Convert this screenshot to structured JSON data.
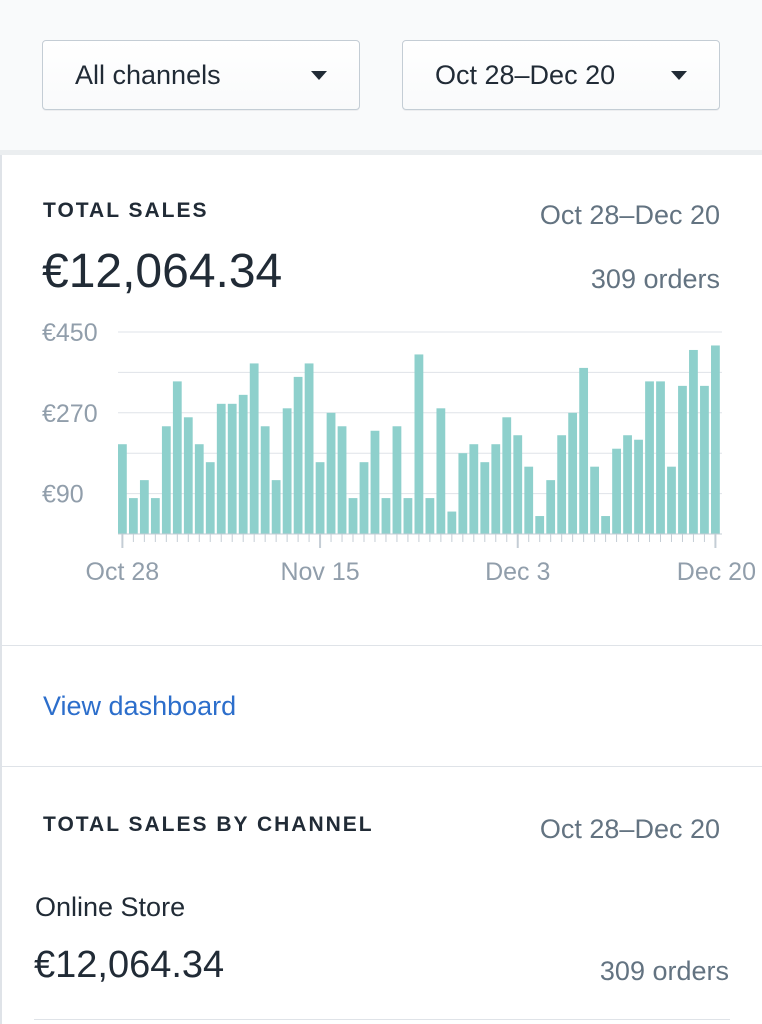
{
  "filters": {
    "channel": "All channels",
    "date_range": "Oct 28–Dec 20"
  },
  "total_sales": {
    "title": "TOTAL SALES",
    "date_range": "Oct 28–Dec 20",
    "amount": "€12,064.34",
    "orders": "309 orders"
  },
  "chart_data": {
    "type": "bar",
    "x_tick_labels": [
      "Oct 28",
      "Nov 15",
      "Dec 3",
      "Dec 20"
    ],
    "y_tick_labels": [
      "€450",
      "€270",
      "€90"
    ],
    "ylim": [
      0,
      450
    ],
    "grid": true,
    "color": "#8ed0cc",
    "values": [
      200,
      80,
      120,
      80,
      240,
      340,
      260,
      200,
      160,
      290,
      290,
      310,
      380,
      240,
      120,
      280,
      350,
      380,
      160,
      270,
      240,
      80,
      160,
      230,
      80,
      240,
      80,
      400,
      80,
      280,
      50,
      180,
      200,
      160,
      200,
      260,
      220,
      150,
      40,
      120,
      220,
      270,
      370,
      150,
      40,
      190,
      220,
      210,
      340,
      340,
      150,
      330,
      410,
      330,
      420
    ]
  },
  "actions": {
    "view_dashboard": "View dashboard"
  },
  "sales_by_channel": {
    "title": "TOTAL SALES BY CHANNEL",
    "date_range": "Oct 28–Dec 20",
    "channel_name": "Online Store",
    "amount": "€12,064.34",
    "orders": "309 orders"
  }
}
